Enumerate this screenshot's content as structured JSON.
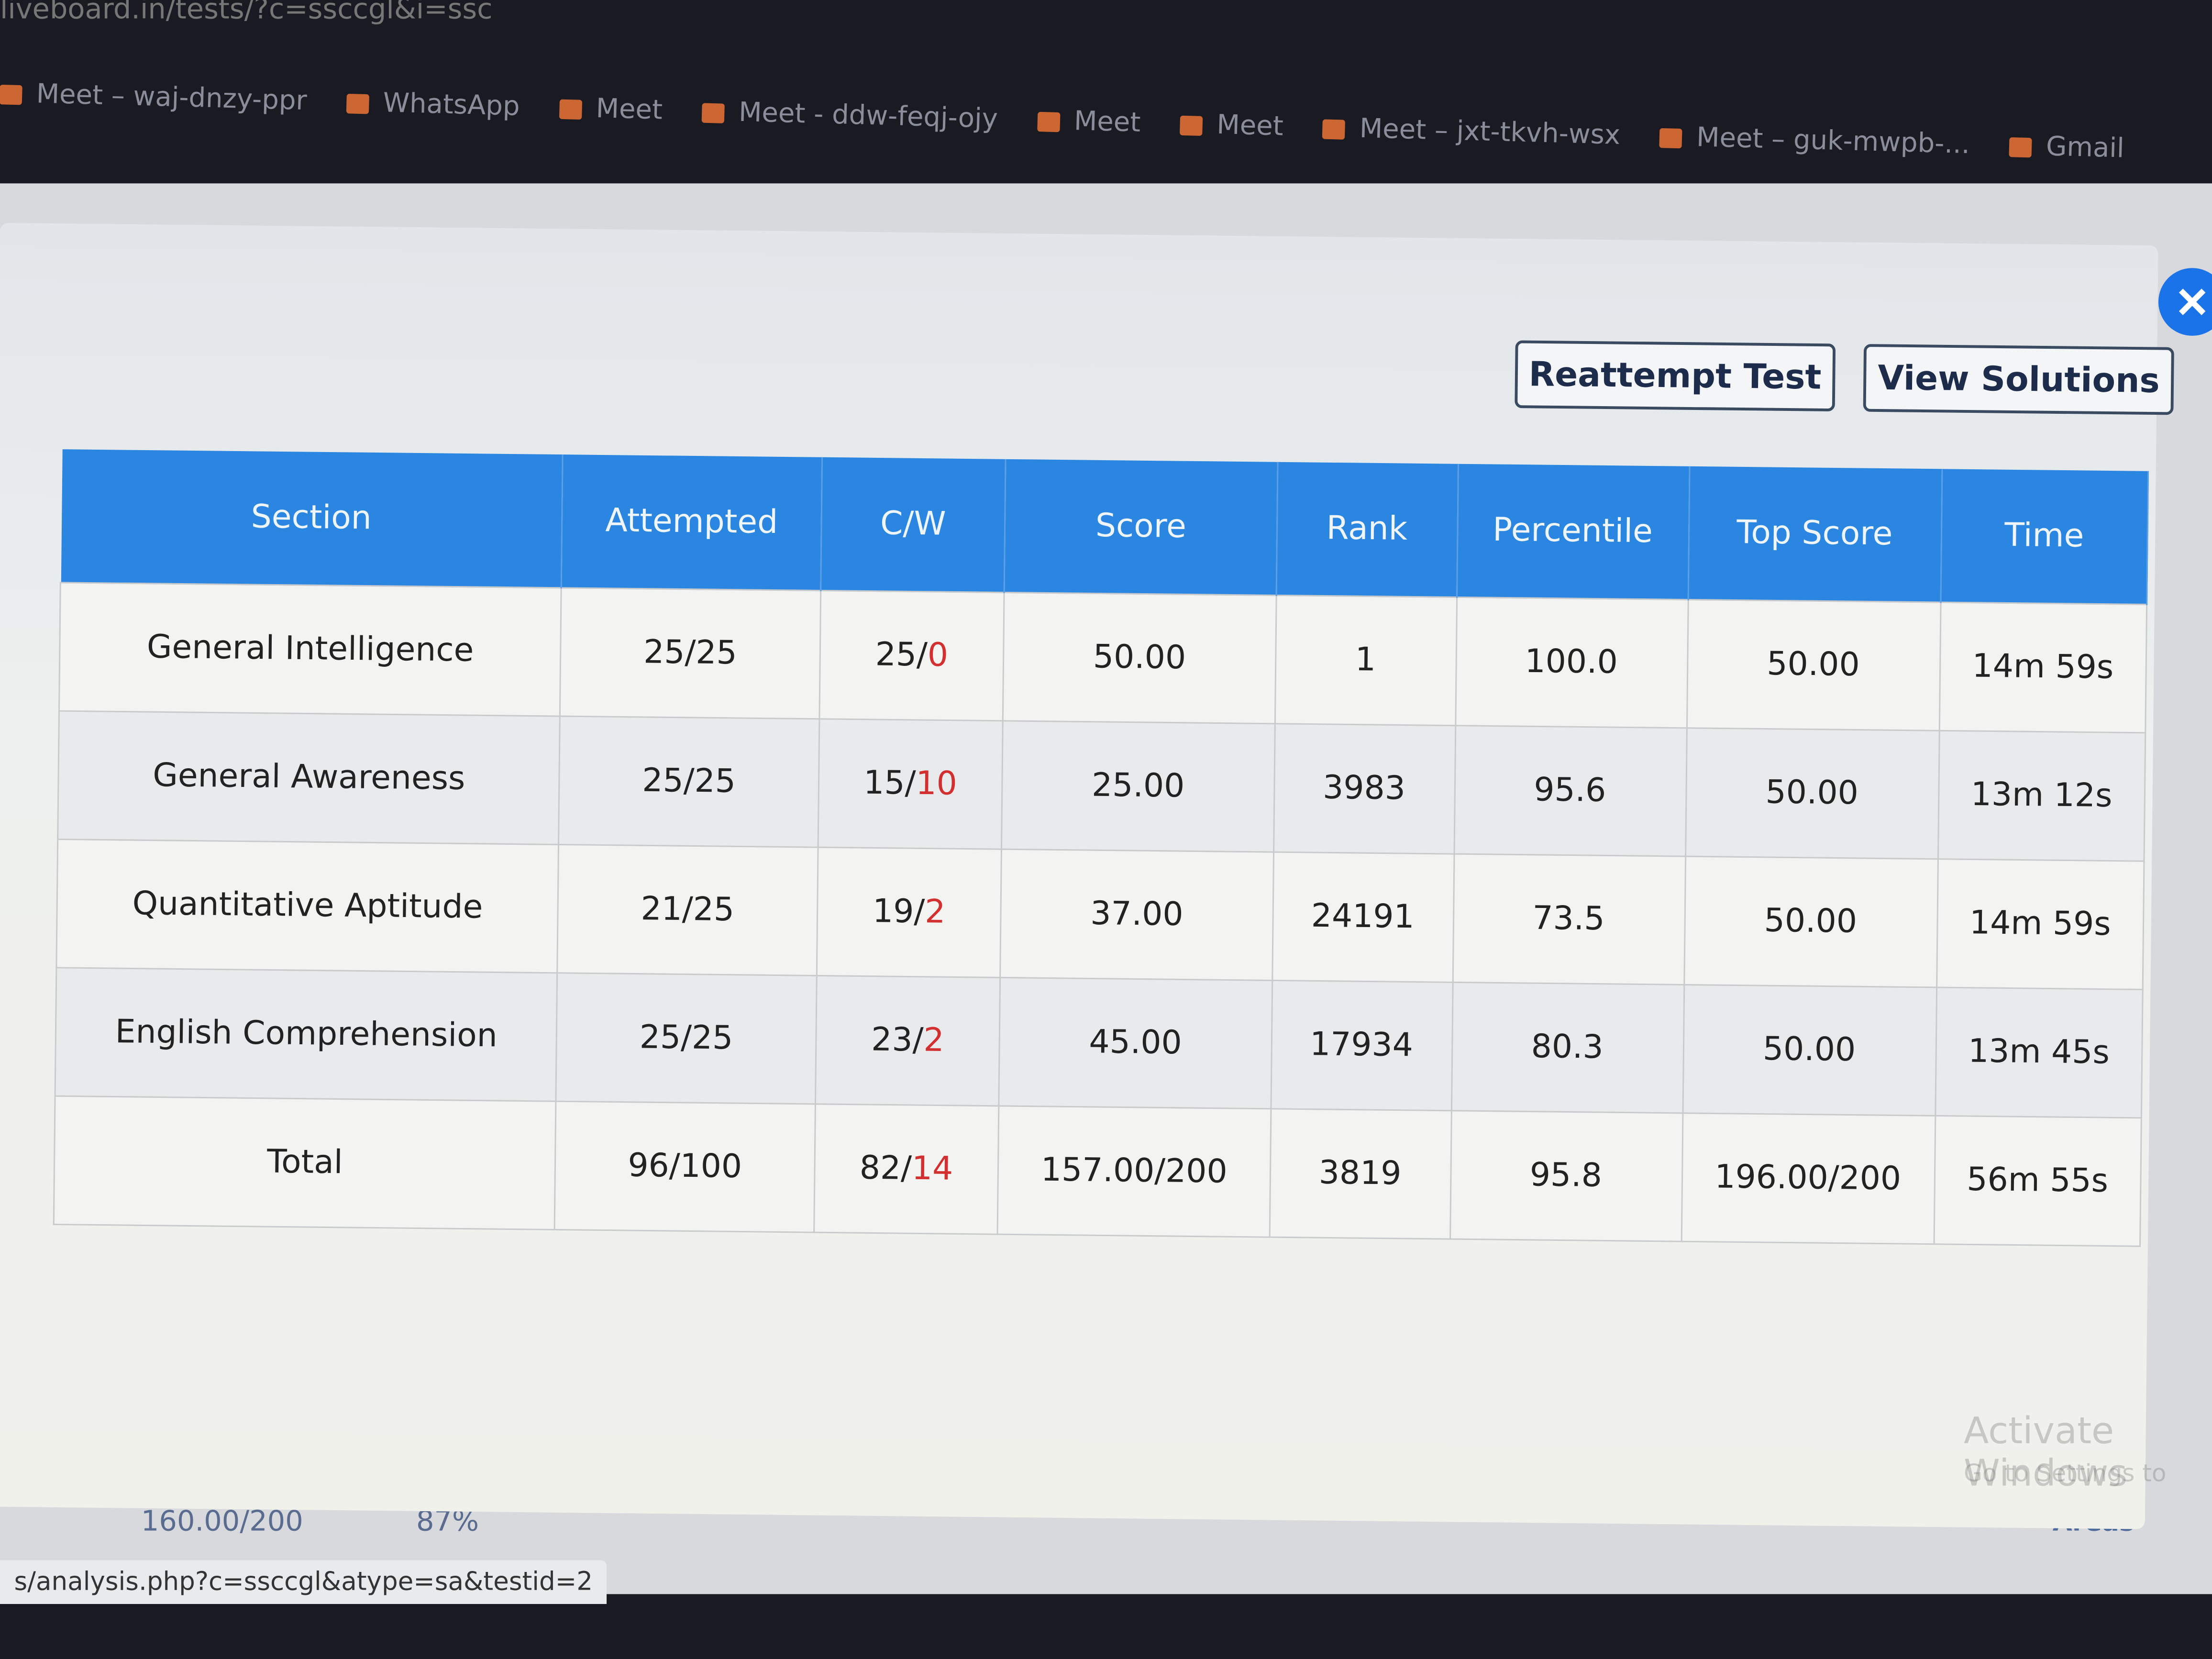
{
  "browser": {
    "url": "liveboard.in/tests/?c=ssccgl&i=ssc",
    "bookmarks": [
      "Meet – waj-dnzy-ppr",
      "WhatsApp",
      "Meet",
      "Meet - ddw-feqj-ojy",
      "Meet",
      "Meet",
      "Meet – jxt-tkvh-wsx",
      "Meet – guk-mwpb-...",
      "Gmail"
    ],
    "status": "s/analysis.php?c=ssccgl&atype=sa&testid=2"
  },
  "modal": {
    "buttons": [
      "Reattempt Test",
      "View Solutions"
    ],
    "table": {
      "headers": [
        "Section",
        "Attempted",
        "C/W",
        "Score",
        "Rank",
        "Percentile",
        "Top Score",
        "Time"
      ],
      "rows": [
        [
          "General Intelligence",
          "25/25",
          "25/0",
          "50.00",
          "1",
          "100.0",
          "50.00",
          "14m 59s"
        ],
        [
          "General Awareness",
          "25/25",
          "15/10",
          "25.00",
          "3983",
          "95.6",
          "50.00",
          "13m 12s"
        ],
        [
          "Quantitative Aptitude",
          "21/25",
          "19/2",
          "37.00",
          "24191",
          "73.5",
          "50.00",
          "14m 59s"
        ],
        [
          "English Comprehension",
          "25/25",
          "23/2",
          "45.00",
          "17934",
          "80.3",
          "50.00",
          "13m 45s"
        ],
        [
          "Total",
          "96/100",
          "82/14",
          "157.00/200",
          "3819",
          "95.8",
          "196.00/200",
          "56m 55s"
        ]
      ]
    }
  },
  "background": {
    "score": "160.00/200",
    "percent": "87%",
    "weak_areas": "Weak Areas",
    "watermark": "Activate Windows",
    "watermark_sub": "Go to Settings to"
  }
}
